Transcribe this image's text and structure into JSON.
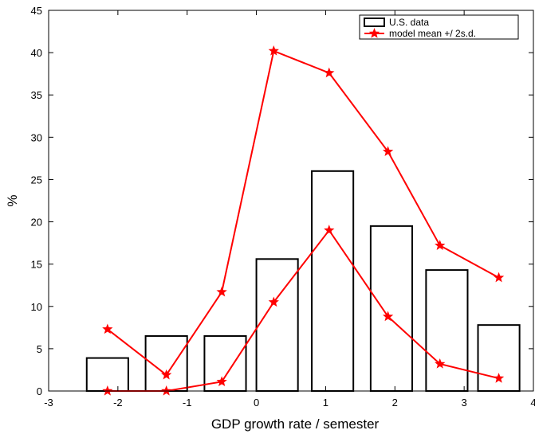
{
  "chart_data": {
    "type": "bar",
    "xlabel": "GDP growth rate / semester",
    "ylabel": "%",
    "xlim": [
      -3,
      4
    ],
    "ylim": [
      0,
      45
    ],
    "xticks": [
      "-3",
      "-2",
      "-1",
      "0",
      "1",
      "2",
      "3",
      "4"
    ],
    "yticks": [
      "0",
      "5",
      "10",
      "15",
      "20",
      "25",
      "30",
      "35",
      "40",
      "45"
    ],
    "grid": false,
    "legend_position": "top-right",
    "bars": {
      "name": "U.S. data",
      "style": "outline",
      "color": "#000000",
      "x": [
        -2.15,
        -1.3,
        -0.45,
        0.3,
        1.1,
        1.95,
        2.75,
        3.5
      ],
      "width": 0.6,
      "values": [
        3.9,
        6.5,
        6.5,
        15.6,
        26.0,
        19.5,
        14.3,
        7.8
      ]
    },
    "model_series": {
      "name": "model mean +/ 2s.d.",
      "color": "#ff0000",
      "marker": "star",
      "upper": {
        "x": [
          -2.15,
          -1.3,
          -0.5,
          0.25,
          1.05,
          1.9,
          2.65,
          3.5
        ],
        "values": [
          7.3,
          1.9,
          11.7,
          40.2,
          37.6,
          28.3,
          17.2,
          13.4
        ]
      },
      "mean": {
        "x": [
          -2.15,
          -1.3,
          -0.5,
          0.25,
          1.05,
          1.9,
          2.65,
          3.5
        ],
        "values": [
          0.0,
          0.0,
          1.1,
          10.5,
          19.0,
          8.8,
          3.2,
          1.5
        ]
      }
    }
  }
}
